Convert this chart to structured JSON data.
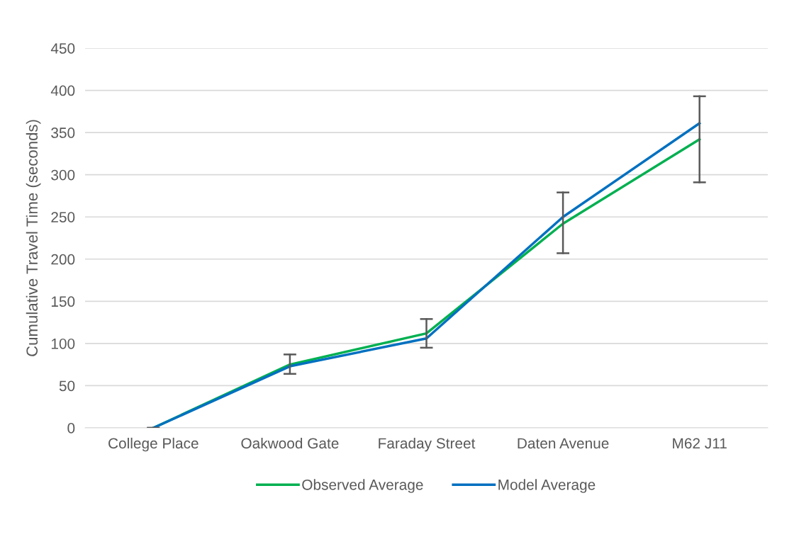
{
  "chart_data": {
    "type": "line",
    "ylabel": "Cumulative Travel Time (seconds)",
    "categories": [
      "College Place",
      "Oakwood Gate",
      "Faraday Street",
      "Daten Avenue",
      "M62 J11"
    ],
    "series": [
      {
        "name": "Observed Average",
        "color": "#00b050",
        "values": [
          0,
          75,
          112,
          242,
          342
        ],
        "errors": [
          [
            0,
            0
          ],
          [
            64,
            87
          ],
          [
            95,
            129
          ],
          [
            207,
            279
          ],
          [
            291,
            393
          ]
        ]
      },
      {
        "name": "Model Average",
        "color": "#0070c0",
        "values": [
          0,
          73,
          106,
          250,
          361
        ]
      }
    ],
    "ylim": [
      0,
      450
    ],
    "yticks": [
      0,
      50,
      100,
      150,
      200,
      250,
      300,
      350,
      400,
      450
    ],
    "grid": "y",
    "legend": "bottom",
    "marker": "none",
    "line_style": "solid"
  }
}
